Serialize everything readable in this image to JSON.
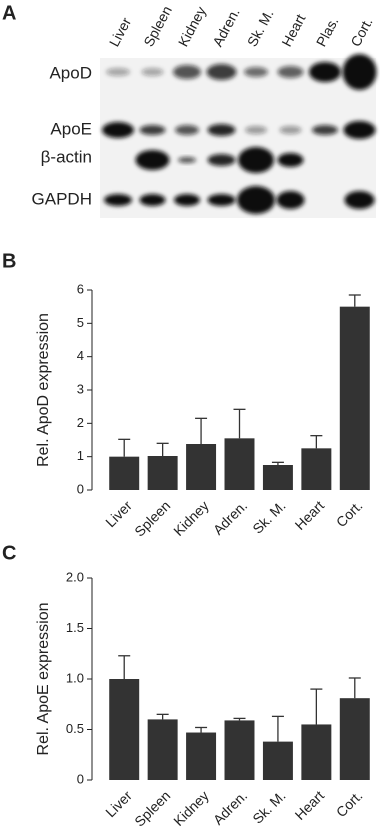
{
  "panel_labels": [
    "A",
    "B",
    "C"
  ],
  "blot": {
    "lanes": [
      "Liver",
      "Spleen",
      "Kidney",
      "Adren.",
      "Sk. M.",
      "Heart",
      "Plas.",
      "Cort."
    ],
    "rows": [
      "ApoD",
      "ApoE",
      "β-actin",
      "GAPDH"
    ]
  },
  "chart_data": [
    {
      "type": "bar",
      "y_label": "Rel. ApoD expression",
      "categories": [
        "Liver",
        "Spleen",
        "Kidney",
        "Adren.",
        "Sk. M.",
        "Heart",
        "Cort."
      ],
      "values": [
        1.0,
        1.02,
        1.38,
        1.55,
        0.75,
        1.25,
        5.5
      ],
      "errors": [
        0.52,
        0.38,
        0.77,
        0.87,
        0.08,
        0.38,
        0.35
      ],
      "color": "#333333",
      "ylim": [
        0,
        6
      ],
      "yticks": [
        0,
        1,
        2,
        3,
        4,
        5,
        6
      ]
    },
    {
      "type": "bar",
      "y_label": "Rel. ApoE expression",
      "categories": [
        "Liver",
        "Spleen",
        "Kidney",
        "Adren.",
        "Sk. M.",
        "Heart",
        "Cort."
      ],
      "values": [
        1.0,
        0.6,
        0.47,
        0.59,
        0.38,
        0.55,
        0.81
      ],
      "errors": [
        0.23,
        0.05,
        0.05,
        0.02,
        0.25,
        0.35,
        0.2
      ],
      "color": "#333333",
      "ylim": [
        0,
        2
      ],
      "yticks": [
        0,
        0.5,
        {
          "value": 1,
          "label": "1.0"
        },
        1.5,
        {
          "value": 2,
          "label": "2.0"
        }
      ]
    }
  ]
}
